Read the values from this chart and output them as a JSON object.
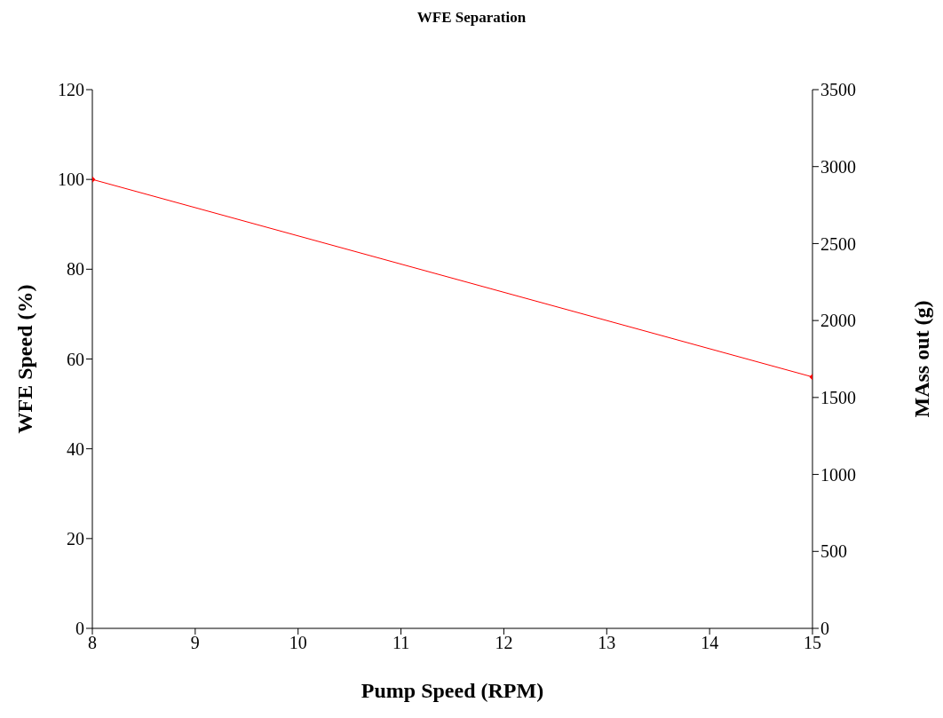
{
  "chart_data": {
    "type": "line",
    "title": "WFE Separation",
    "xlabel": "Pump Speed (RPM)",
    "ylabel": "WFE Speed (%)",
    "y2label": "MAss out (g)",
    "x": [
      8,
      15
    ],
    "series": [
      {
        "color": "#ff0000",
        "values": [
          100,
          56
        ]
      }
    ],
    "xlim": [
      8,
      15
    ],
    "xticks": [
      8,
      9,
      10,
      11,
      12,
      13,
      14,
      15
    ],
    "ylim": [
      0,
      120
    ],
    "yticks": [
      0,
      20,
      40,
      60,
      80,
      100,
      120
    ],
    "y2lim": [
      0,
      3500
    ],
    "y2ticks": [
      0,
      500,
      1000,
      1500,
      2000,
      2500,
      3000,
      3500
    ],
    "marker": "diamond"
  }
}
